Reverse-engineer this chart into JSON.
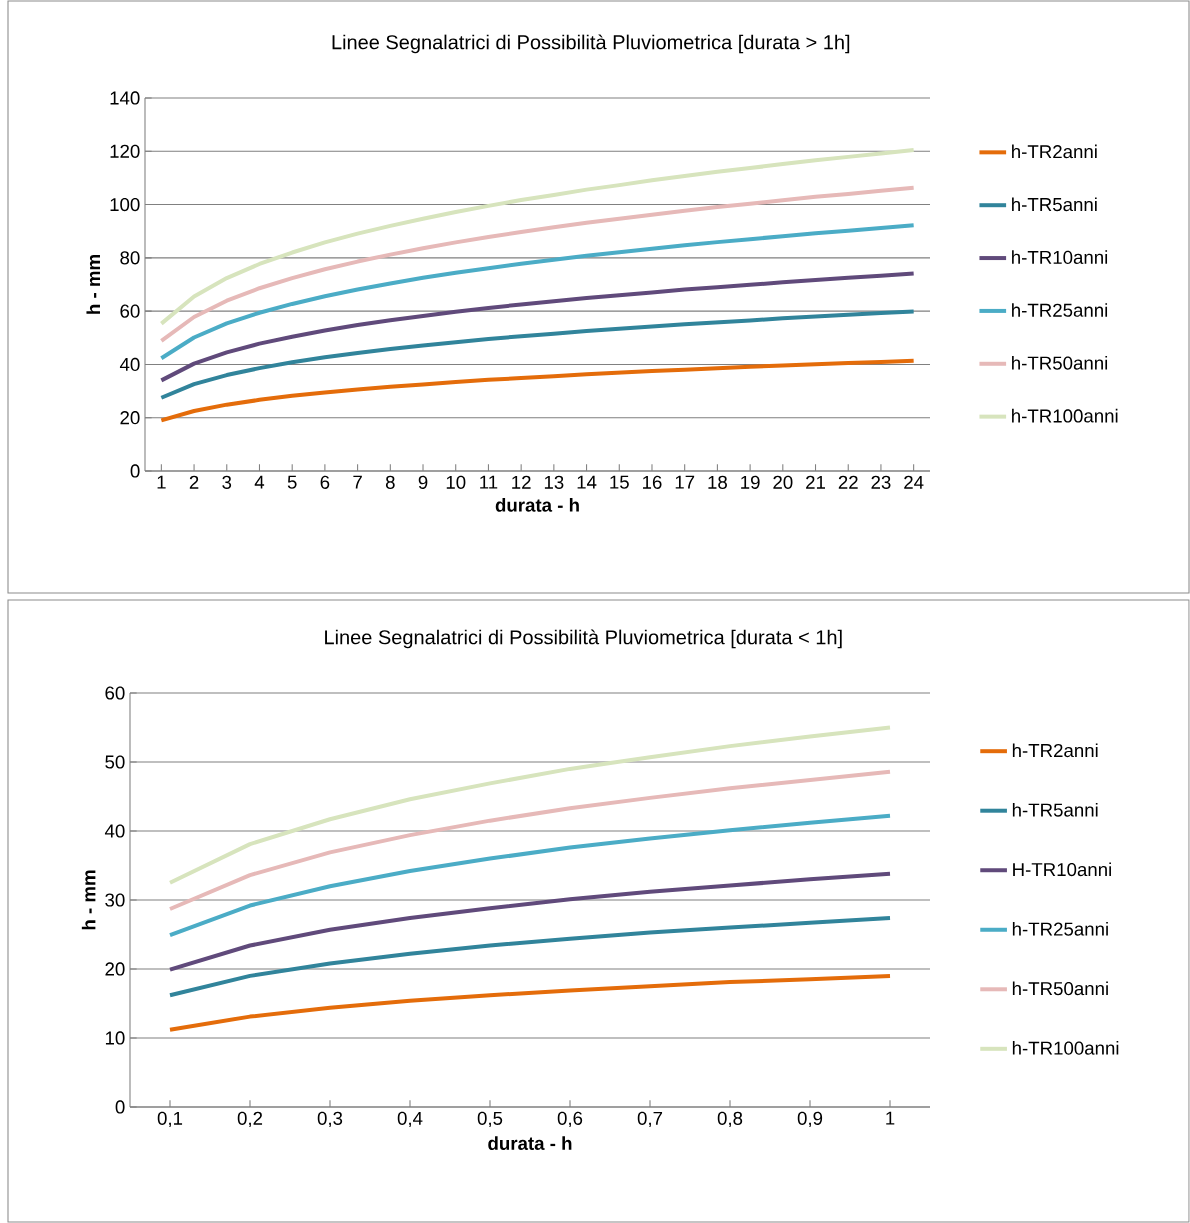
{
  "chart_data": [
    {
      "type": "line",
      "title": "Linee Segnalatrici di Possibilità Pluviometrica [durata > 1h]",
      "xlabel": "durata - h",
      "ylabel": "h - mm",
      "categories": [
        "1",
        "2",
        "3",
        "4",
        "5",
        "6",
        "7",
        "8",
        "9",
        "10",
        "11",
        "12",
        "13",
        "14",
        "15",
        "16",
        "17",
        "18",
        "19",
        "20",
        "21",
        "22",
        "23",
        "24"
      ],
      "ylim": [
        0,
        140
      ],
      "yticks": [
        0,
        20,
        40,
        60,
        80,
        100,
        120,
        140
      ],
      "grid": "y",
      "legend": "right",
      "marker": "none",
      "line_style": "solid",
      "series": [
        {
          "name": "h-TR2anni",
          "color": "#e46c0a",
          "values": [
            19,
            22.5,
            24.9,
            26.7,
            28.2,
            29.5,
            30.6,
            31.6,
            32.5,
            33.4,
            34.2,
            34.9,
            35.6,
            36.3,
            36.9,
            37.5,
            38.0,
            38.6,
            39.1,
            39.6,
            40.1,
            40.5,
            40.9,
            41.4
          ]
        },
        {
          "name": "h-TR5anni",
          "color": "#31849b",
          "values": [
            27.5,
            32.6,
            36.0,
            38.6,
            40.8,
            42.7,
            44.3,
            45.8,
            47.1,
            48.3,
            49.5,
            50.6,
            51.5,
            52.5,
            53.4,
            54.2,
            55.1,
            55.8,
            56.5,
            57.3,
            58.0,
            58.6,
            59.3,
            59.9
          ]
        },
        {
          "name": "h-TR10anni",
          "color": "#604a7b",
          "values": [
            34,
            40.3,
            44.5,
            47.8,
            50.4,
            52.7,
            54.8,
            56.6,
            58.2,
            59.8,
            61.2,
            62.5,
            63.7,
            64.9,
            66.0,
            67.0,
            68.1,
            69.0,
            69.9,
            70.8,
            71.7,
            72.5,
            73.3,
            74.1
          ]
        },
        {
          "name": "h-TR25anni",
          "color": "#4bacc6",
          "values": [
            42.3,
            50.1,
            55.4,
            59.4,
            62.7,
            65.6,
            68.1,
            70.4,
            72.5,
            74.4,
            76.1,
            77.8,
            79.3,
            80.8,
            82.1,
            83.4,
            84.7,
            85.9,
            87.0,
            88.1,
            89.2,
            90.2,
            91.2,
            92.2
          ]
        },
        {
          "name": "h-TR50anni",
          "color": "#e6b9b8",
          "values": [
            48.8,
            57.8,
            63.9,
            68.6,
            72.4,
            75.7,
            78.6,
            81.2,
            83.6,
            85.8,
            87.8,
            89.7,
            91.5,
            93.2,
            94.7,
            96.2,
            97.7,
            99.1,
            100.3,
            101.6,
            102.9,
            104.0,
            105.2,
            106.3
          ]
        },
        {
          "name": "h-TR100anni",
          "color": "#d7e4bd",
          "values": [
            55.3,
            65.5,
            72.4,
            77.7,
            82.0,
            85.8,
            89.1,
            92.0,
            94.7,
            97.2,
            99.5,
            101.7,
            103.6,
            105.6,
            107.3,
            109.1,
            110.7,
            112.3,
            113.7,
            115.2,
            116.6,
            117.9,
            119.2,
            120.5
          ]
        }
      ]
    },
    {
      "type": "line",
      "title": "Linee Segnalatrici di Possibilità Pluviometrica [durata < 1h]",
      "xlabel": "durata - h",
      "ylabel": "h - mm",
      "categories": [
        "0,1",
        "0,2",
        "0,3",
        "0,4",
        "0,5",
        "0,6",
        "0,7",
        "0,8",
        "0,9",
        "1"
      ],
      "ylim": [
        0,
        60
      ],
      "yticks": [
        0,
        10,
        20,
        30,
        40,
        50,
        60
      ],
      "grid": "y",
      "legend": "right",
      "marker": "none",
      "line_style": "solid",
      "series": [
        {
          "name": "h-TR2anni",
          "color": "#e46c0a",
          "values": [
            11.2,
            13.1,
            14.4,
            15.4,
            16.2,
            16.9,
            17.5,
            18.1,
            18.5,
            19.0
          ]
        },
        {
          "name": "h-TR5anni",
          "color": "#31849b",
          "values": [
            16.2,
            19.0,
            20.8,
            22.2,
            23.4,
            24.4,
            25.3,
            26.0,
            26.7,
            27.4
          ]
        },
        {
          "name": "H-TR10anni",
          "color": "#604a7b",
          "values": [
            19.9,
            23.4,
            25.7,
            27.4,
            28.8,
            30.1,
            31.2,
            32.1,
            33.0,
            33.8
          ]
        },
        {
          "name": "h-TR25anni",
          "color": "#4bacc6",
          "values": [
            24.9,
            29.2,
            32.0,
            34.2,
            36.0,
            37.6,
            38.9,
            40.1,
            41.2,
            42.2
          ]
        },
        {
          "name": "h-TR50anni",
          "color": "#e6b9b8",
          "values": [
            28.7,
            33.6,
            36.9,
            39.4,
            41.5,
            43.3,
            44.8,
            46.2,
            47.4,
            48.6
          ]
        },
        {
          "name": "h-TR100anni",
          "color": "#d7e4bd",
          "values": [
            32.5,
            38.1,
            41.7,
            44.6,
            46.9,
            49.0,
            50.7,
            52.3,
            53.7,
            55.0
          ]
        }
      ]
    }
  ]
}
